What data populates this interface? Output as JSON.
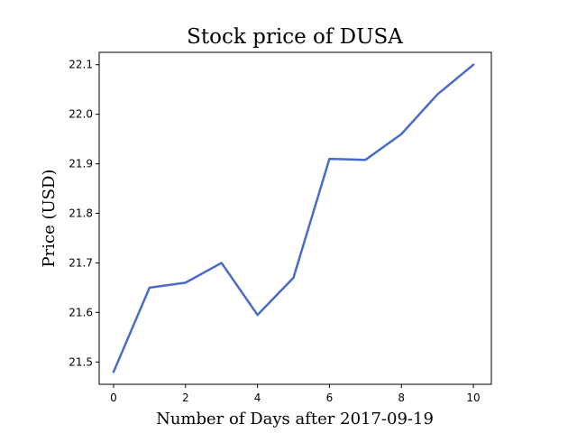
{
  "chart_data": {
    "type": "line",
    "title": "Stock price of DUSA",
    "xlabel": "Number of Days after 2017-09-19",
    "ylabel": "Price (USD)",
    "x": [
      0,
      1,
      2,
      3,
      4,
      5,
      6,
      7,
      8,
      9,
      10
    ],
    "series": [
      {
        "values": [
          21.48,
          21.65,
          21.66,
          21.7,
          21.595,
          21.67,
          21.91,
          21.908,
          21.96,
          22.04,
          22.1
        ],
        "color": "#4a6bc9"
      }
    ],
    "xlim": [
      -0.4,
      10.5
    ],
    "ylim": [
      21.455,
      22.125
    ],
    "xticks": [
      0,
      2,
      4,
      6,
      8,
      10
    ],
    "xtick_labels": [
      "0",
      "2",
      "4",
      "6",
      "8",
      "10"
    ],
    "yticks": [
      21.5,
      21.6,
      21.7,
      21.8,
      21.9,
      22.0,
      22.1
    ],
    "ytick_labels": [
      "21.5",
      "21.6",
      "21.7",
      "21.8",
      "21.9",
      "22.0",
      "22.1"
    ],
    "grid": false,
    "legend": false
  }
}
